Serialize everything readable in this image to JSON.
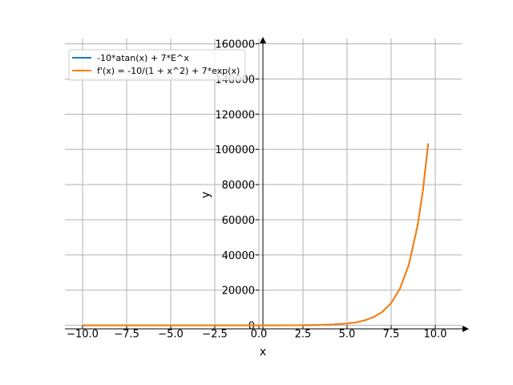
{
  "chart_data": {
    "type": "line",
    "title": "",
    "xlabel": "x",
    "ylabel": "y",
    "xlim": [
      -11.0,
      11.5
    ],
    "ylim": [
      -2000,
      163000
    ],
    "grid": true,
    "legend_position": "top-left",
    "x_ticks": [
      -10.0,
      -7.5,
      -5.0,
      -2.5,
      0.0,
      2.5,
      5.0,
      7.5,
      10.0
    ],
    "x_tick_labels": [
      "−10.0",
      "−7.5",
      "−5.0",
      "−2.5",
      "0.0",
      "2.5",
      "5.0",
      "7.5",
      "10.0"
    ],
    "y_ticks": [
      0,
      20000,
      40000,
      60000,
      80000,
      100000,
      120000,
      140000,
      160000
    ],
    "y_tick_labels": [
      "0",
      "20000",
      "40000",
      "60000",
      "80000",
      "100000",
      "120000",
      "140000",
      "160000"
    ],
    "series": [
      {
        "name": "-10*atan(x) + 7*E^x",
        "color": "#1f77b4",
        "x": [
          -10,
          -8,
          -6,
          -4,
          -2,
          0,
          1,
          2,
          3,
          4,
          5,
          5.5,
          6,
          6.5,
          7,
          7.5,
          8,
          8.5,
          9,
          9.3,
          9.6
        ],
        "y": [
          15,
          14,
          14,
          13,
          12,
          7,
          11,
          41,
          128,
          369,
          1025,
          1675,
          2810,
          4679,
          7662,
          12622,
          20852,
          34377,
          56708,
          76542,
          103324
        ]
      },
      {
        "name": "f'(x) = -10/(1 + x^2) + 7*exp(x)",
        "color": "#ff7f0e",
        "x": [
          -10,
          -8,
          -6,
          -4,
          -2,
          0,
          1,
          2,
          3,
          4,
          5,
          5.5,
          6,
          6.5,
          7,
          7.5,
          8,
          8.5,
          9,
          9.3,
          9.6
        ],
        "y": [
          -0.1,
          -0.2,
          -0.3,
          -0.5,
          -1,
          -3,
          14,
          50,
          140,
          381,
          1038,
          1687,
          2824,
          4693,
          7676,
          12636,
          20866,
          34392,
          56723,
          76556,
          103338
        ]
      }
    ]
  }
}
